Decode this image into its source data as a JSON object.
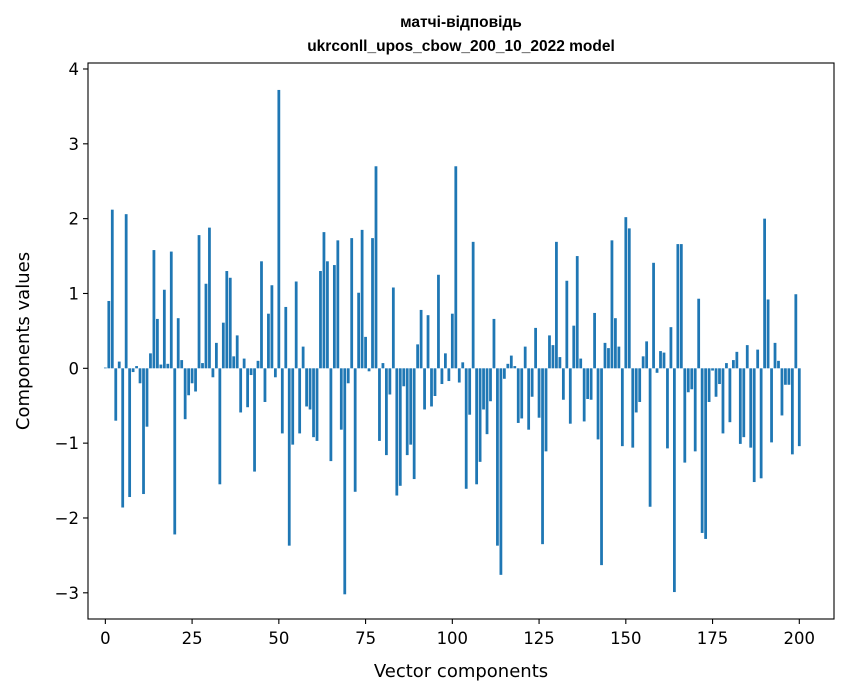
{
  "chart_data": {
    "type": "bar",
    "title": "матчі-відповідь",
    "subtitle": "ukrconll_upos_cbow_200_10_2022 model",
    "xlabel": "Vector components",
    "ylabel": "Components values",
    "xlim": [
      -5,
      210
    ],
    "ylim": [
      -3.35,
      4.08
    ],
    "xticks": [
      0,
      25,
      50,
      75,
      100,
      125,
      150,
      175,
      200
    ],
    "yticks": [
      -3,
      -2,
      -1,
      0,
      1,
      2,
      3,
      4
    ],
    "xtick_labels": [
      "0",
      "25",
      "50",
      "75",
      "100",
      "125",
      "150",
      "175",
      "200"
    ],
    "ytick_labels": [
      "−3",
      "−2",
      "−1",
      "0",
      "1",
      "2",
      "3",
      "4"
    ],
    "bar_color": "#1f77b4",
    "values": [
      0.01,
      0.9,
      2.12,
      -0.7,
      0.09,
      -1.86,
      2.06,
      -1.72,
      -0.05,
      0.03,
      -0.2,
      -1.68,
      -0.78,
      0.2,
      1.58,
      0.66,
      0.05,
      1.05,
      0.06,
      1.56,
      -2.22,
      0.67,
      0.11,
      -0.68,
      -0.36,
      -0.2,
      -0.31,
      1.78,
      0.07,
      1.13,
      1.88,
      -0.12,
      0.34,
      -1.55,
      0.61,
      1.3,
      1.21,
      0.16,
      0.44,
      -0.59,
      0.13,
      -0.52,
      -0.09,
      -1.38,
      0.1,
      1.43,
      -0.45,
      0.73,
      1.11,
      -0.12,
      3.72,
      -0.87,
      0.82,
      -2.37,
      -1.02,
      1.16,
      -0.87,
      0.29,
      -0.51,
      -0.55,
      -0.92,
      -0.97,
      1.3,
      1.82,
      1.43,
      -1.24,
      1.38,
      1.71,
      -0.82,
      -3.02,
      -0.2,
      1.74,
      -1.65,
      1.01,
      1.85,
      0.42,
      -0.04,
      1.74,
      2.7,
      -0.97,
      0.07,
      -1.16,
      -0.35,
      1.08,
      -1.7,
      -1.57,
      -0.24,
      -1.16,
      -1.02,
      -1.48,
      0.32,
      0.78,
      -0.55,
      0.71,
      -0.51,
      -0.37,
      1.25,
      -0.21,
      0.2,
      -0.17,
      0.73,
      2.7,
      -0.19,
      0.08,
      -1.61,
      -0.62,
      1.69,
      -1.55,
      -1.25,
      -0.55,
      -0.88,
      -0.44,
      0.66,
      -2.37,
      -2.76,
      -0.14,
      0.06,
      0.17,
      0.03,
      -0.73,
      -0.67,
      0.29,
      -0.82,
      -0.38,
      0.54,
      -0.66,
      -2.35,
      -1.11,
      0.44,
      0.31,
      1.69,
      0.15,
      -0.42,
      1.17,
      -0.74,
      0.57,
      1.5,
      0.13,
      -0.71,
      -0.41,
      -0.42,
      0.74,
      -0.95,
      -2.63,
      0.34,
      0.27,
      1.71,
      0.67,
      0.29,
      -1.04,
      2.02,
      1.87,
      -1.06,
      -0.59,
      -0.45,
      0.16,
      0.36,
      -1.85,
      1.41,
      -0.06,
      0.23,
      0.21,
      -1.07,
      0.55,
      -2.99,
      1.66,
      1.66,
      -1.26,
      -0.32,
      -0.28,
      -1.11,
      0.93,
      -2.2,
      -2.28,
      -0.45,
      -0.03,
      -0.38,
      -0.21,
      -0.87,
      0.07,
      -0.72,
      0.11,
      0.22,
      -1.01,
      -0.92,
      0.31,
      -1.06,
      -1.52,
      0.25,
      -1.47,
      2.0,
      0.92,
      -0.99,
      0.34,
      0.1,
      -0.63,
      -0.22,
      -0.22,
      -1.15,
      0.99,
      -1.04
    ]
  }
}
